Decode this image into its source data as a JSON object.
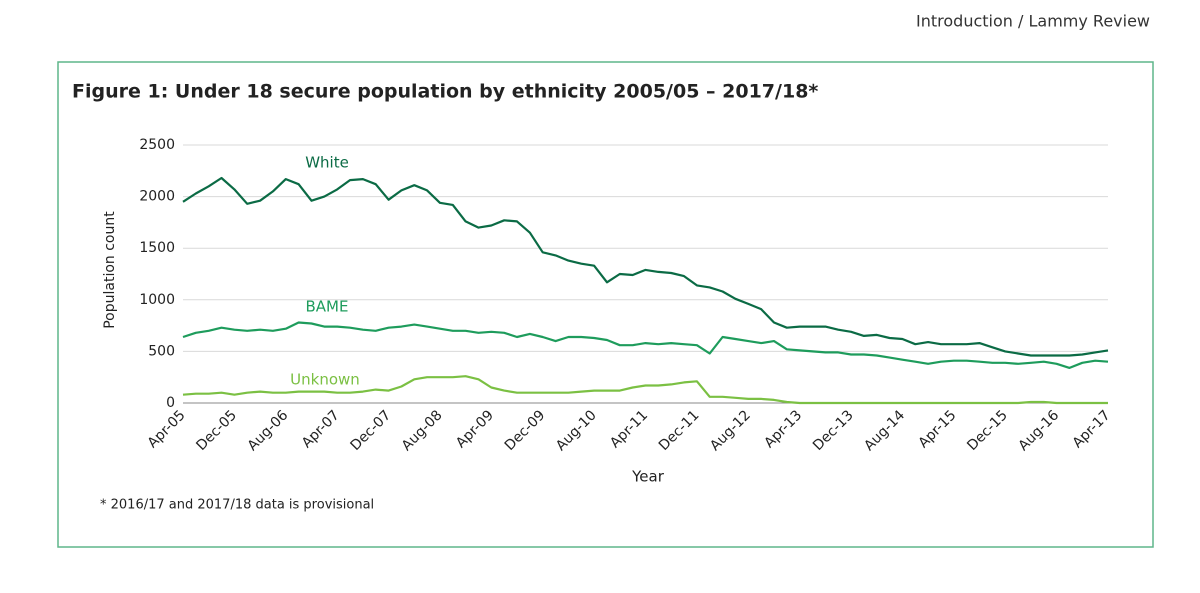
{
  "header": "Introduction / Lammy Review",
  "chart_data": {
    "type": "line",
    "title": "Figure 1: Under 18 secure population by ethnicity 2005/05 – 2017/18*",
    "xlabel": "Year",
    "ylabel": "Population count",
    "footnote": "* 2016/17 and 2017/18 data is provisional",
    "categories": [
      "Apr-05",
      null,
      null,
      null,
      "Dec-05",
      null,
      null,
      null,
      "Aug-06",
      null,
      null,
      null,
      "Apr-07",
      null,
      null,
      null,
      "Dec-07",
      null,
      null,
      null,
      "Aug-08",
      null,
      null,
      null,
      "Apr-09",
      null,
      null,
      null,
      "Dec-09",
      null,
      null,
      null,
      "Aug-10",
      null,
      null,
      null,
      "Apr-11",
      null,
      null,
      null,
      "Dec-11",
      null,
      null,
      null,
      "Aug-12",
      null,
      null,
      null,
      "Apr-13",
      null,
      null,
      null,
      "Dec-13",
      null,
      null,
      null,
      "Aug-14",
      null,
      null,
      null,
      "Apr-15",
      null,
      null,
      null,
      "Dec-15",
      null,
      null,
      null,
      "Aug-16",
      null,
      null,
      null,
      "Apr-17"
    ],
    "series": [
      {
        "name": "White",
        "color": "#0b6b45",
        "values": [
          1950,
          2030,
          2100,
          2180,
          2070,
          1930,
          1960,
          2050,
          2170,
          2120,
          1960,
          2000,
          2070,
          2160,
          2170,
          2120,
          1970,
          2060,
          2110,
          2060,
          1940,
          1920,
          1760,
          1700,
          1720,
          1770,
          1760,
          1650,
          1460,
          1430,
          1380,
          1350,
          1330,
          1170,
          1250,
          1240,
          1290,
          1270,
          1260,
          1230,
          1140,
          1120,
          1080,
          1010,
          960,
          910,
          780,
          730,
          740,
          740,
          740,
          710,
          690,
          650,
          660,
          630,
          620,
          570,
          590,
          570,
          570,
          570,
          580,
          540,
          500,
          480,
          460,
          460,
          460,
          460,
          470,
          490,
          510
        ]
      },
      {
        "name": "BAME",
        "color": "#1e9c5c",
        "values": [
          640,
          680,
          700,
          730,
          710,
          700,
          710,
          700,
          720,
          780,
          770,
          740,
          740,
          730,
          710,
          700,
          730,
          740,
          760,
          740,
          720,
          700,
          700,
          680,
          690,
          680,
          640,
          670,
          640,
          600,
          640,
          640,
          630,
          610,
          560,
          560,
          580,
          570,
          580,
          570,
          560,
          480,
          640,
          620,
          600,
          580,
          600,
          520,
          510,
          500,
          490,
          490,
          470,
          470,
          460,
          440,
          420,
          400,
          380,
          400,
          410,
          410,
          400,
          390,
          390,
          380,
          390,
          400,
          380,
          340,
          390,
          410,
          400
        ]
      },
      {
        "name": "Unknown",
        "color": "#7bc043",
        "values": [
          80,
          90,
          90,
          100,
          80,
          100,
          110,
          100,
          100,
          110,
          110,
          110,
          100,
          100,
          110,
          130,
          120,
          160,
          230,
          250,
          250,
          250,
          260,
          230,
          150,
          120,
          100,
          100,
          100,
          100,
          100,
          110,
          120,
          120,
          120,
          150,
          170,
          170,
          180,
          200,
          210,
          60,
          60,
          50,
          40,
          40,
          30,
          10,
          0,
          0,
          0,
          0,
          0,
          0,
          0,
          0,
          0,
          0,
          0,
          0,
          0,
          0,
          0,
          0,
          0,
          0,
          10,
          10,
          0,
          0,
          0,
          0,
          0
        ]
      }
    ],
    "ylim": [
      0,
      2500
    ],
    "yticks": [
      0,
      500,
      1000,
      1500,
      2000,
      2500
    ],
    "grid": true
  }
}
